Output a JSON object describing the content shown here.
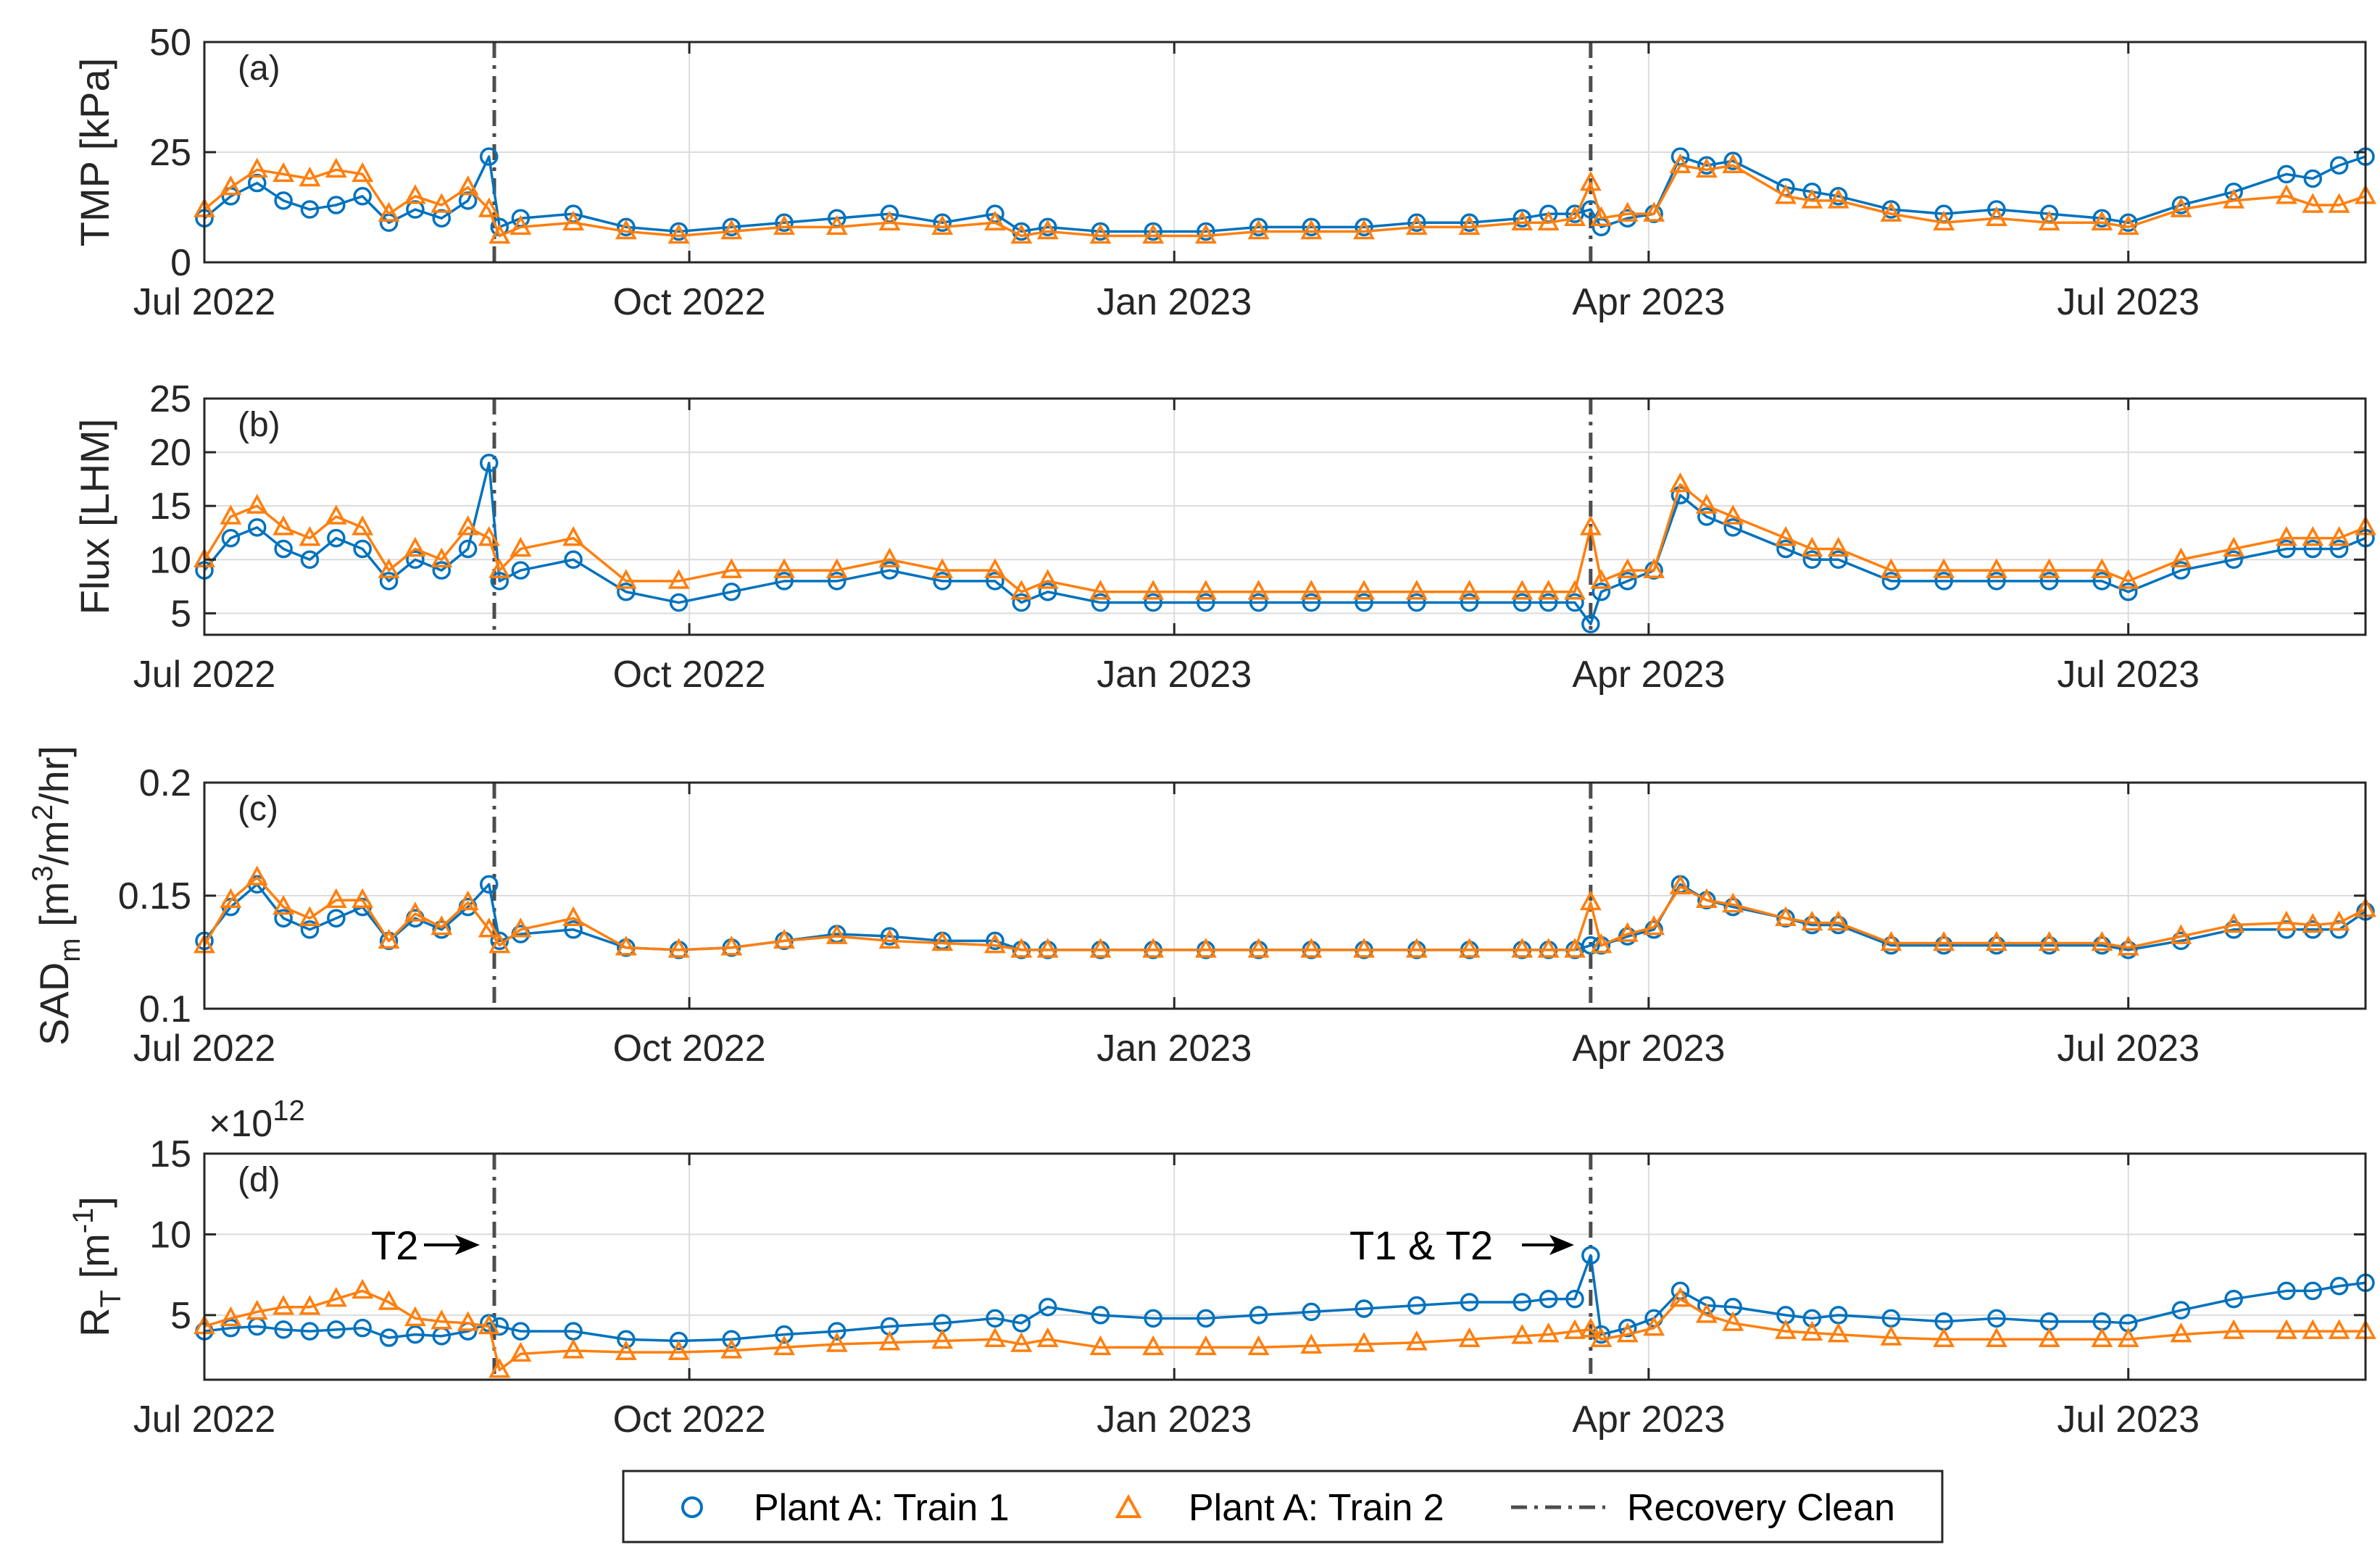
{
  "colors": {
    "train1": "#0072BD",
    "train2": "#FF7F0E",
    "clean": "#4d4d4d",
    "axis": "#262626",
    "grid": "#dcdcdc"
  },
  "legend": {
    "train1": "Plant A: Train 1",
    "train2": "Plant A: Train 2",
    "clean": "Recovery Clean"
  },
  "annotations": {
    "first": "T2",
    "second": "T1 & T2"
  },
  "chart_data": [
    {
      "type": "line",
      "panel": "(a)",
      "title": "",
      "xlabel": "",
      "ylabel": "TMP [kPa]",
      "ylim": [
        0,
        50
      ],
      "yticks": [
        0,
        25,
        50
      ],
      "ytick_labels": [
        "0",
        "25",
        "50"
      ],
      "xlim_days": [
        0,
        410
      ],
      "xticks_days": [
        0,
        92,
        184,
        274,
        365
      ],
      "xtick_labels": [
        "Jul 2022",
        "Oct 2022",
        "Jan 2023",
        "Apr 2023",
        "Jul 2023"
      ],
      "grid": true,
      "recovery_clean_days": [
        55,
        263
      ],
      "series": [
        {
          "name": "Plant A: Train 1",
          "marker": "circle",
          "x": [
            0,
            5,
            10,
            15,
            20,
            25,
            30,
            35,
            40,
            45,
            50,
            54,
            56,
            60,
            70,
            80,
            90,
            100,
            110,
            120,
            130,
            140,
            150,
            155,
            160,
            170,
            180,
            190,
            200,
            210,
            220,
            230,
            240,
            250,
            255,
            260,
            263,
            265,
            270,
            275,
            280,
            285,
            290,
            300,
            305,
            310,
            320,
            330,
            340,
            350,
            360,
            365,
            375,
            385,
            395,
            400,
            405,
            410
          ],
          "values": [
            10,
            15,
            18,
            14,
            12,
            13,
            15,
            9,
            12,
            10,
            14,
            24,
            8,
            10,
            11,
            8,
            7,
            8,
            9,
            10,
            11,
            9,
            11,
            7,
            8,
            7,
            7,
            7,
            8,
            8,
            8,
            9,
            9,
            10,
            11,
            11,
            12,
            8,
            10,
            11,
            24,
            22,
            23,
            17,
            16,
            15,
            12,
            11,
            12,
            11,
            10,
            9,
            13,
            16,
            20,
            19,
            22,
            24
          ]
        },
        {
          "name": "Plant A: Train 2",
          "marker": "triangle",
          "x": [
            0,
            5,
            10,
            15,
            20,
            25,
            30,
            35,
            40,
            45,
            50,
            54,
            56,
            60,
            70,
            80,
            90,
            100,
            110,
            120,
            130,
            140,
            150,
            155,
            160,
            170,
            180,
            190,
            200,
            210,
            220,
            230,
            240,
            250,
            255,
            260,
            263,
            265,
            270,
            275,
            280,
            285,
            290,
            300,
            305,
            310,
            320,
            330,
            340,
            350,
            360,
            365,
            375,
            385,
            395,
            400,
            405,
            410
          ],
          "values": [
            12,
            17,
            21,
            20,
            19,
            21,
            20,
            11,
            15,
            13,
            17,
            12,
            6,
            8,
            9,
            7,
            6,
            7,
            8,
            8,
            9,
            8,
            9,
            6,
            7,
            6,
            6,
            6,
            7,
            7,
            7,
            8,
            8,
            9,
            9,
            10,
            18,
            10,
            11,
            11,
            22,
            21,
            22,
            15,
            14,
            14,
            11,
            9,
            10,
            9,
            9,
            8,
            12,
            14,
            15,
            13,
            13,
            15
          ]
        }
      ]
    },
    {
      "type": "line",
      "panel": "(b)",
      "title": "",
      "xlabel": "",
      "ylabel": "Flux [LHM]",
      "ylim": [
        3,
        25
      ],
      "yticks": [
        5,
        10,
        15,
        20,
        25
      ],
      "ytick_labels": [
        "5",
        "10",
        "15",
        "20",
        "25"
      ],
      "xlim_days": [
        0,
        410
      ],
      "xticks_days": [
        0,
        92,
        184,
        274,
        365
      ],
      "xtick_labels": [
        "Jul 2022",
        "Oct 2022",
        "Jan 2023",
        "Apr 2023",
        "Jul 2023"
      ],
      "grid": true,
      "recovery_clean_days": [
        55,
        263
      ],
      "series": [
        {
          "name": "Plant A: Train 1",
          "marker": "circle",
          "x": [
            0,
            5,
            10,
            15,
            20,
            25,
            30,
            35,
            40,
            45,
            50,
            54,
            56,
            60,
            70,
            80,
            90,
            100,
            110,
            120,
            130,
            140,
            150,
            155,
            160,
            170,
            180,
            190,
            200,
            210,
            220,
            230,
            240,
            250,
            255,
            260,
            263,
            265,
            270,
            275,
            280,
            285,
            290,
            300,
            305,
            310,
            320,
            330,
            340,
            350,
            360,
            365,
            375,
            385,
            395,
            400,
            405,
            410
          ],
          "values": [
            9,
            12,
            13,
            11,
            10,
            12,
            11,
            8,
            10,
            9,
            11,
            19,
            8,
            9,
            10,
            7,
            6,
            7,
            8,
            8,
            9,
            8,
            8,
            6,
            7,
            6,
            6,
            6,
            6,
            6,
            6,
            6,
            6,
            6,
            6,
            6,
            4,
            7,
            8,
            9,
            16,
            14,
            13,
            11,
            10,
            10,
            8,
            8,
            8,
            8,
            8,
            7,
            9,
            10,
            11,
            11,
            11,
            12
          ]
        },
        {
          "name": "Plant A: Train 2",
          "marker": "triangle",
          "x": [
            0,
            5,
            10,
            15,
            20,
            25,
            30,
            35,
            40,
            45,
            50,
            54,
            56,
            60,
            70,
            80,
            90,
            100,
            110,
            120,
            130,
            140,
            150,
            155,
            160,
            170,
            180,
            190,
            200,
            210,
            220,
            230,
            240,
            250,
            255,
            260,
            263,
            265,
            270,
            275,
            280,
            285,
            290,
            300,
            305,
            310,
            320,
            330,
            340,
            350,
            360,
            365,
            375,
            385,
            395,
            400,
            405,
            410
          ],
          "values": [
            10,
            14,
            15,
            13,
            12,
            14,
            13,
            9,
            11,
            10,
            13,
            12,
            9,
            11,
            12,
            8,
            8,
            9,
            9,
            9,
            10,
            9,
            9,
            7,
            8,
            7,
            7,
            7,
            7,
            7,
            7,
            7,
            7,
            7,
            7,
            7,
            13,
            8,
            9,
            9,
            17,
            15,
            14,
            12,
            11,
            11,
            9,
            9,
            9,
            9,
            9,
            8,
            10,
            11,
            12,
            12,
            12,
            13
          ]
        }
      ]
    },
    {
      "type": "line",
      "panel": "(c)",
      "title": "",
      "xlabel": "",
      "ylabel": "SAD_m [m^3/m^2/hr]",
      "ylim": [
        0.1,
        0.2
      ],
      "yticks": [
        0.1,
        0.15,
        0.2
      ],
      "ytick_labels": [
        "0.1",
        "0.15",
        "0.2"
      ],
      "xlim_days": [
        0,
        410
      ],
      "xticks_days": [
        0,
        92,
        184,
        274,
        365
      ],
      "xtick_labels": [
        "Jul 2022",
        "Oct 2022",
        "Jan 2023",
        "Apr 2023",
        "Jul 2023"
      ],
      "grid": true,
      "recovery_clean_days": [
        55,
        263
      ],
      "series": [
        {
          "name": "Plant A: Train 1",
          "marker": "circle",
          "x": [
            0,
            5,
            10,
            15,
            20,
            25,
            30,
            35,
            40,
            45,
            50,
            54,
            56,
            60,
            70,
            80,
            90,
            100,
            110,
            120,
            130,
            140,
            150,
            155,
            160,
            170,
            180,
            190,
            200,
            210,
            220,
            230,
            240,
            250,
            255,
            260,
            263,
            265,
            270,
            275,
            280,
            285,
            290,
            300,
            305,
            310,
            320,
            330,
            340,
            350,
            360,
            365,
            375,
            385,
            395,
            400,
            405,
            410
          ],
          "values": [
            0.13,
            0.145,
            0.155,
            0.14,
            0.135,
            0.14,
            0.145,
            0.13,
            0.14,
            0.135,
            0.145,
            0.155,
            0.13,
            0.133,
            0.135,
            0.127,
            0.126,
            0.127,
            0.13,
            0.133,
            0.132,
            0.13,
            0.13,
            0.126,
            0.126,
            0.126,
            0.126,
            0.126,
            0.126,
            0.126,
            0.126,
            0.126,
            0.126,
            0.126,
            0.126,
            0.126,
            0.128,
            0.128,
            0.132,
            0.135,
            0.155,
            0.148,
            0.145,
            0.14,
            0.137,
            0.137,
            0.128,
            0.128,
            0.128,
            0.128,
            0.128,
            0.126,
            0.13,
            0.135,
            0.135,
            0.135,
            0.135,
            0.143
          ]
        },
        {
          "name": "Plant A: Train 2",
          "marker": "triangle",
          "x": [
            0,
            5,
            10,
            15,
            20,
            25,
            30,
            35,
            40,
            45,
            50,
            54,
            56,
            60,
            70,
            80,
            90,
            100,
            110,
            120,
            130,
            140,
            150,
            155,
            160,
            170,
            180,
            190,
            200,
            210,
            220,
            230,
            240,
            250,
            255,
            260,
            263,
            265,
            270,
            275,
            280,
            285,
            290,
            300,
            305,
            310,
            320,
            330,
            340,
            350,
            360,
            365,
            375,
            385,
            395,
            400,
            405,
            410
          ],
          "values": [
            0.128,
            0.148,
            0.158,
            0.145,
            0.14,
            0.148,
            0.148,
            0.13,
            0.142,
            0.136,
            0.147,
            0.135,
            0.128,
            0.135,
            0.14,
            0.127,
            0.126,
            0.127,
            0.13,
            0.132,
            0.13,
            0.129,
            0.128,
            0.126,
            0.126,
            0.126,
            0.126,
            0.126,
            0.126,
            0.126,
            0.126,
            0.126,
            0.126,
            0.126,
            0.126,
            0.126,
            0.147,
            0.128,
            0.133,
            0.136,
            0.154,
            0.148,
            0.146,
            0.14,
            0.138,
            0.138,
            0.129,
            0.129,
            0.129,
            0.129,
            0.129,
            0.127,
            0.132,
            0.137,
            0.138,
            0.137,
            0.138,
            0.144
          ]
        }
      ]
    },
    {
      "type": "line",
      "panel": "(d)",
      "title": "",
      "xlabel": "",
      "ylabel": "R_T [m^-1]",
      "ylim": [
        1,
        15
      ],
      "yticks": [
        5,
        10,
        15
      ],
      "ytick_labels": [
        "5",
        "10",
        "15"
      ],
      "y_exponent_label": "×10^12",
      "xlim_days": [
        0,
        410
      ],
      "xticks_days": [
        0,
        92,
        184,
        274,
        365
      ],
      "xtick_labels": [
        "Jul 2022",
        "Oct 2022",
        "Jan 2023",
        "Apr 2023",
        "Jul 2023"
      ],
      "grid": true,
      "recovery_clean_days": [
        55,
        263
      ],
      "series": [
        {
          "name": "Plant A: Train 1",
          "marker": "circle",
          "x": [
            0,
            5,
            10,
            15,
            20,
            25,
            30,
            35,
            40,
            45,
            50,
            54,
            56,
            60,
            70,
            80,
            90,
            100,
            110,
            120,
            130,
            140,
            150,
            155,
            160,
            170,
            180,
            190,
            200,
            210,
            220,
            230,
            240,
            250,
            255,
            260,
            263,
            265,
            270,
            275,
            280,
            285,
            290,
            300,
            305,
            310,
            320,
            330,
            340,
            350,
            360,
            365,
            375,
            385,
            395,
            400,
            405,
            410
          ],
          "values": [
            4.0,
            4.2,
            4.3,
            4.1,
            4.0,
            4.1,
            4.2,
            3.6,
            3.8,
            3.7,
            4.0,
            4.5,
            4.3,
            4.0,
            4.0,
            3.5,
            3.4,
            3.5,
            3.8,
            4.0,
            4.3,
            4.5,
            4.8,
            4.5,
            5.5,
            5.0,
            4.8,
            4.8,
            5.0,
            5.2,
            5.4,
            5.6,
            5.8,
            5.8,
            6.0,
            6.0,
            8.7,
            3.8,
            4.2,
            4.8,
            6.5,
            5.6,
            5.5,
            5.0,
            4.8,
            5.0,
            4.8,
            4.6,
            4.8,
            4.6,
            4.6,
            4.5,
            5.3,
            6.0,
            6.5,
            6.5,
            6.8,
            7.0
          ]
        },
        {
          "name": "Plant A: Train 2",
          "marker": "triangle",
          "x": [
            0,
            5,
            10,
            15,
            20,
            25,
            30,
            35,
            40,
            45,
            50,
            54,
            56,
            60,
            70,
            80,
            90,
            100,
            110,
            120,
            130,
            140,
            150,
            155,
            160,
            170,
            180,
            190,
            200,
            210,
            220,
            230,
            240,
            250,
            255,
            260,
            263,
            265,
            270,
            275,
            280,
            285,
            290,
            300,
            305,
            310,
            320,
            330,
            340,
            350,
            360,
            365,
            375,
            385,
            395,
            400,
            405,
            410
          ],
          "values": [
            4.3,
            4.8,
            5.2,
            5.5,
            5.5,
            6.0,
            6.5,
            5.8,
            4.8,
            4.6,
            4.5,
            4.3,
            1.6,
            2.6,
            2.8,
            2.7,
            2.7,
            2.8,
            3.0,
            3.2,
            3.3,
            3.4,
            3.5,
            3.2,
            3.5,
            3.0,
            3.0,
            3.0,
            3.0,
            3.1,
            3.2,
            3.3,
            3.5,
            3.7,
            3.8,
            4.0,
            4.1,
            3.5,
            3.8,
            4.2,
            6.0,
            5.0,
            4.5,
            4.0,
            3.9,
            3.8,
            3.6,
            3.5,
            3.5,
            3.5,
            3.5,
            3.5,
            3.8,
            4.0,
            4.0,
            4.0,
            4.0,
            4.0
          ]
        }
      ]
    }
  ]
}
